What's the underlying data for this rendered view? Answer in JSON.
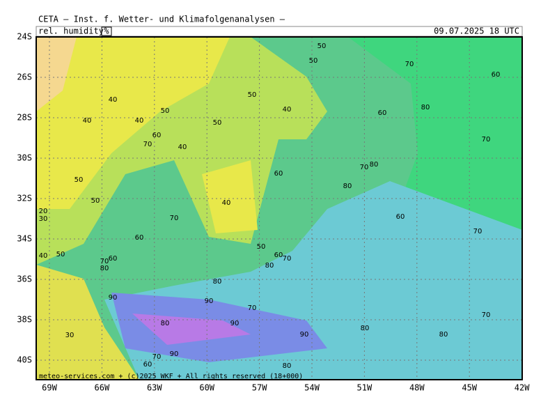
{
  "header": {
    "title": "CETA — Inst. f. Wetter- und Klimafolgenanalysen —",
    "variable": "rel. humidity",
    "unit": "%",
    "valid_time": "09.07.2025 18 UTC"
  },
  "map": {
    "lat_labels": [
      "24S",
      "26S",
      "28S",
      "30S",
      "32S",
      "34S",
      "36S",
      "38S",
      "40S"
    ],
    "lon_labels": [
      "69W",
      "66W",
      "63W",
      "60W",
      "57W",
      "54W",
      "51W",
      "48W",
      "45W",
      "42W"
    ],
    "contour_labels": [
      50,
      50,
      70,
      60,
      50,
      40,
      40,
      80,
      50,
      60,
      40,
      40,
      50,
      60,
      70,
      40,
      70,
      60,
      70,
      80,
      50,
      80,
      50,
      40,
      20,
      30,
      60,
      70,
      70,
      60,
      50,
      40,
      50,
      60,
      70,
      70,
      60,
      80,
      80,
      80,
      90,
      90,
      70,
      80,
      90,
      70,
      80,
      30,
      90,
      80,
      70,
      90,
      60,
      80
    ],
    "copyright": "meteo-services.com + (c)2025 WKF + All rights reserved (18+000)"
  }
}
